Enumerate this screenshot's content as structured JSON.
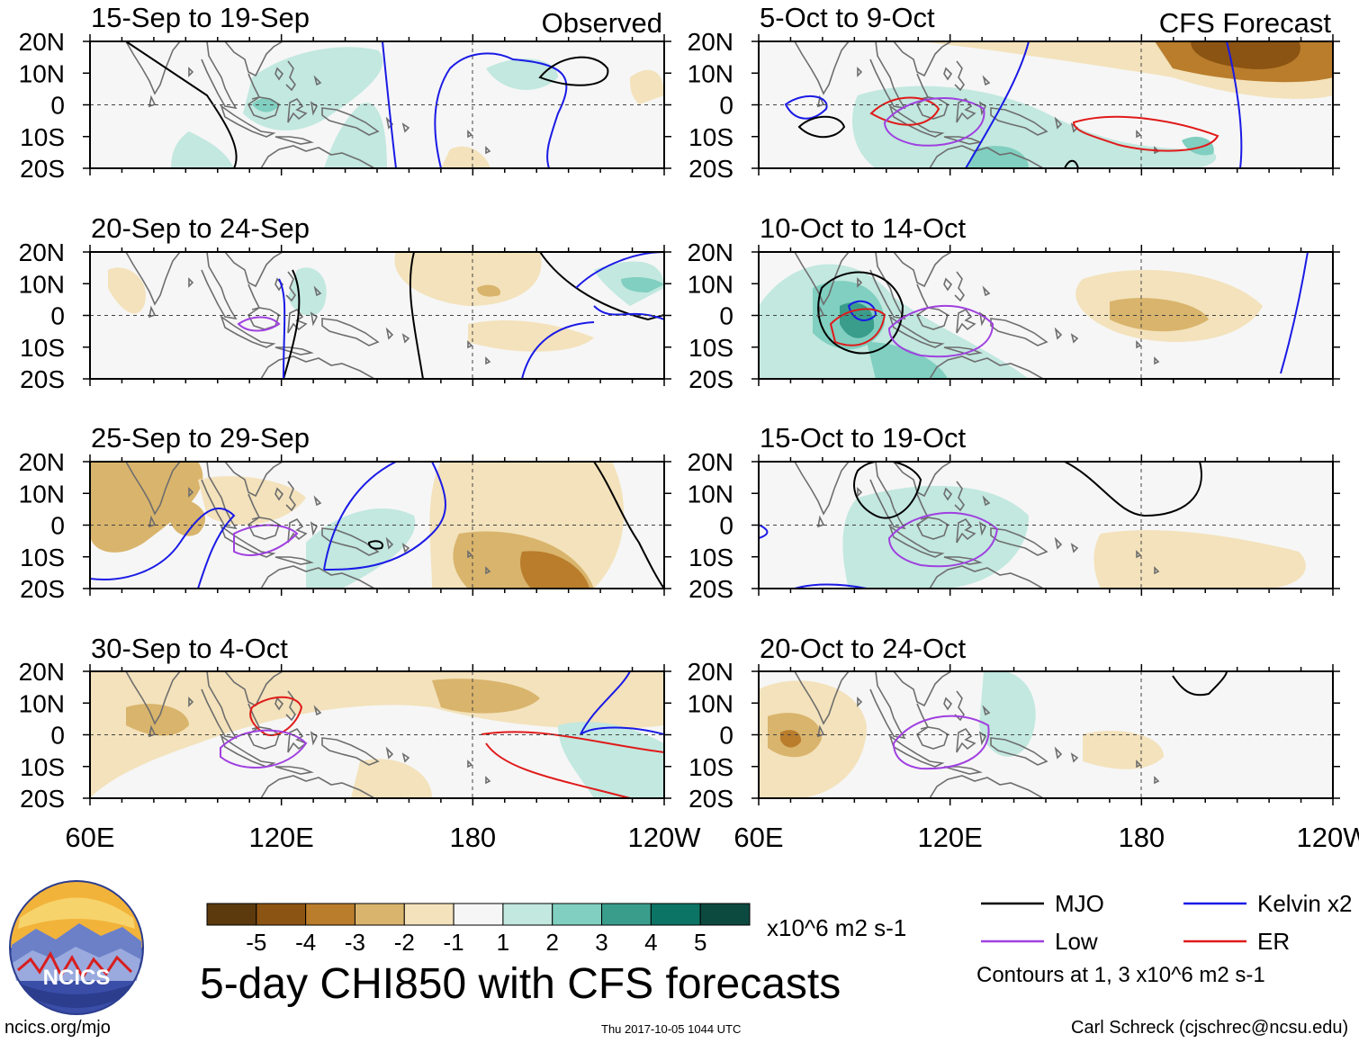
{
  "figure": {
    "title": "5-day CHI850 with CFS forecasts",
    "source_url": "ncics.org/mjo",
    "timestamp": "Thu 2017-10-05 1044 UTC",
    "author": "Carl Schreck (cjschrec@ncsu.edu)",
    "logo_text": "NCICS"
  },
  "panels_left_header": "Observed",
  "panels_right_header": "CFS Forecast",
  "panels": [
    {
      "title": "15-Sep to 19-Sep",
      "kind": "observed"
    },
    {
      "title": "20-Sep to 24-Sep",
      "kind": "observed"
    },
    {
      "title": "25-Sep to 29-Sep",
      "kind": "observed"
    },
    {
      "title": "30-Sep to 4-Oct",
      "kind": "observed"
    },
    {
      "title": "5-Oct to 9-Oct",
      "kind": "forecast"
    },
    {
      "title": "10-Oct to 14-Oct",
      "kind": "forecast"
    },
    {
      "title": "15-Oct to 19-Oct",
      "kind": "forecast"
    },
    {
      "title": "20-Oct to 24-Oct",
      "kind": "forecast"
    }
  ],
  "axes": {
    "lat_ticks": [
      "20N",
      "10N",
      "0",
      "10S",
      "20S"
    ],
    "lon_ticks": [
      "60E",
      "120E",
      "180",
      "120W"
    ]
  },
  "colorbar": {
    "labels": [
      "-5",
      "-4",
      "-3",
      "-2",
      "-1",
      "1",
      "2",
      "3",
      "4",
      "5"
    ],
    "units": "x10^6 m2 s-1",
    "colors": [
      "#5c3a0e",
      "#8c5412",
      "#b97d2c",
      "#d9b46c",
      "#f3e2bb",
      "#f6f6f6",
      "#c2e8df",
      "#80cfc0",
      "#3a9d8c",
      "#0c7464",
      "#0c4a40"
    ]
  },
  "legend": {
    "items": [
      {
        "label": "MJO",
        "color": "#000000"
      },
      {
        "label": "Kelvin x2",
        "color": "#1a1ae6"
      },
      {
        "label": "Low",
        "color": "#a040e0"
      },
      {
        "label": "ER",
        "color": "#e01a1a"
      }
    ],
    "note": "Contours at 1, 3 x10^6 m2 s-1"
  }
}
